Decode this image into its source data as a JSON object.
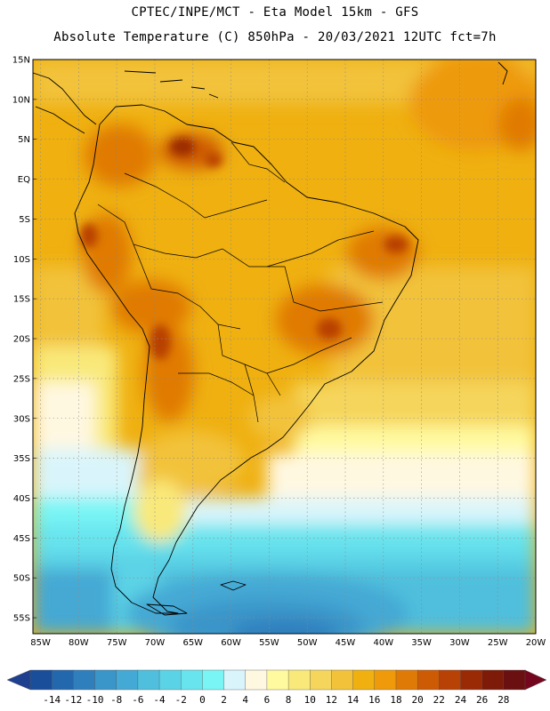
{
  "header": {
    "line1": "CPTEC/INPE/MCT -  Eta Model 15km - GFS",
    "line2": "Absolute Temperature (C) 850hPa - 20/03/2021 12UTC fct=7h"
  },
  "map": {
    "lat_labels": [
      "15N",
      "10N",
      "5N",
      "EQ",
      "5S",
      "10S",
      "15S",
      "20S",
      "25S",
      "30S",
      "35S",
      "40S",
      "45S",
      "50S",
      "55S"
    ],
    "lon_labels": [
      "85W",
      "80W",
      "75W",
      "70W",
      "65W",
      "60W",
      "55W",
      "50W",
      "45W",
      "40W",
      "35W",
      "30W",
      "25W",
      "20W"
    ],
    "lat_range": [
      15,
      -57
    ],
    "lon_range": [
      -86,
      -20
    ]
  },
  "colorbar": {
    "labels": [
      "-14",
      "-12",
      "-10",
      "-8",
      "-6",
      "-4",
      "-2",
      "0",
      "2",
      "4",
      "6",
      "8",
      "10",
      "12",
      "14",
      "16",
      "18",
      "20",
      "22",
      "24",
      "26",
      "28"
    ],
    "colors": [
      "#1a4e9a",
      "#2368ad",
      "#2f7fbd",
      "#3a95c9",
      "#44a9d4",
      "#4fbfdd",
      "#5bd3e6",
      "#68e4ee",
      "#79f5f5",
      "#d9f5fb",
      "#fff8e1",
      "#fffaa0",
      "#f9e97a",
      "#f5d55c",
      "#f2c23a",
      "#efb010",
      "#ee9a0a",
      "#e07a06",
      "#cd5a05",
      "#b84105",
      "#9a2a06",
      "#7d1a08",
      "#6a1010"
    ]
  }
}
